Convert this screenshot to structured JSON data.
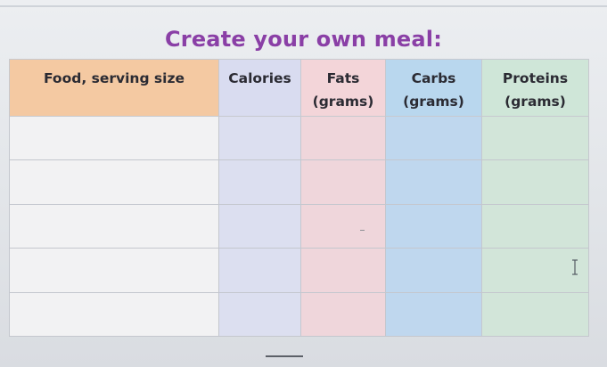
{
  "page": {
    "title": "Create your own meal:"
  },
  "table": {
    "headers": {
      "food": "Food, serving size",
      "calories": "Calories",
      "fats": [
        "Fats",
        "(grams)"
      ],
      "carbs": [
        "Carbs",
        "(grams)"
      ],
      "proteins": [
        "Proteins",
        "(grams)"
      ]
    },
    "rows": [
      {
        "food": "",
        "calories": "",
        "fats": "",
        "carbs": "",
        "proteins": ""
      },
      {
        "food": "",
        "calories": "",
        "fats": "",
        "carbs": "",
        "proteins": ""
      },
      {
        "food": "",
        "calories": "",
        "fats": "",
        "carbs": "",
        "proteins": ""
      },
      {
        "food": "",
        "calories": "",
        "fats": "",
        "carbs": "",
        "proteins": ""
      },
      {
        "food": "",
        "calories": "",
        "fats": "",
        "carbs": "",
        "proteins": ""
      }
    ]
  },
  "colors": {
    "title": "#8a3fa6",
    "food_header": "#f4c9a2",
    "calories_column": "#dcdff0",
    "fats_column": "#efd6db",
    "carbs_column": "#bfd7ee",
    "proteins_column": "#d2e5d9"
  },
  "icons": {
    "cursor": "text-cursor-icon"
  }
}
